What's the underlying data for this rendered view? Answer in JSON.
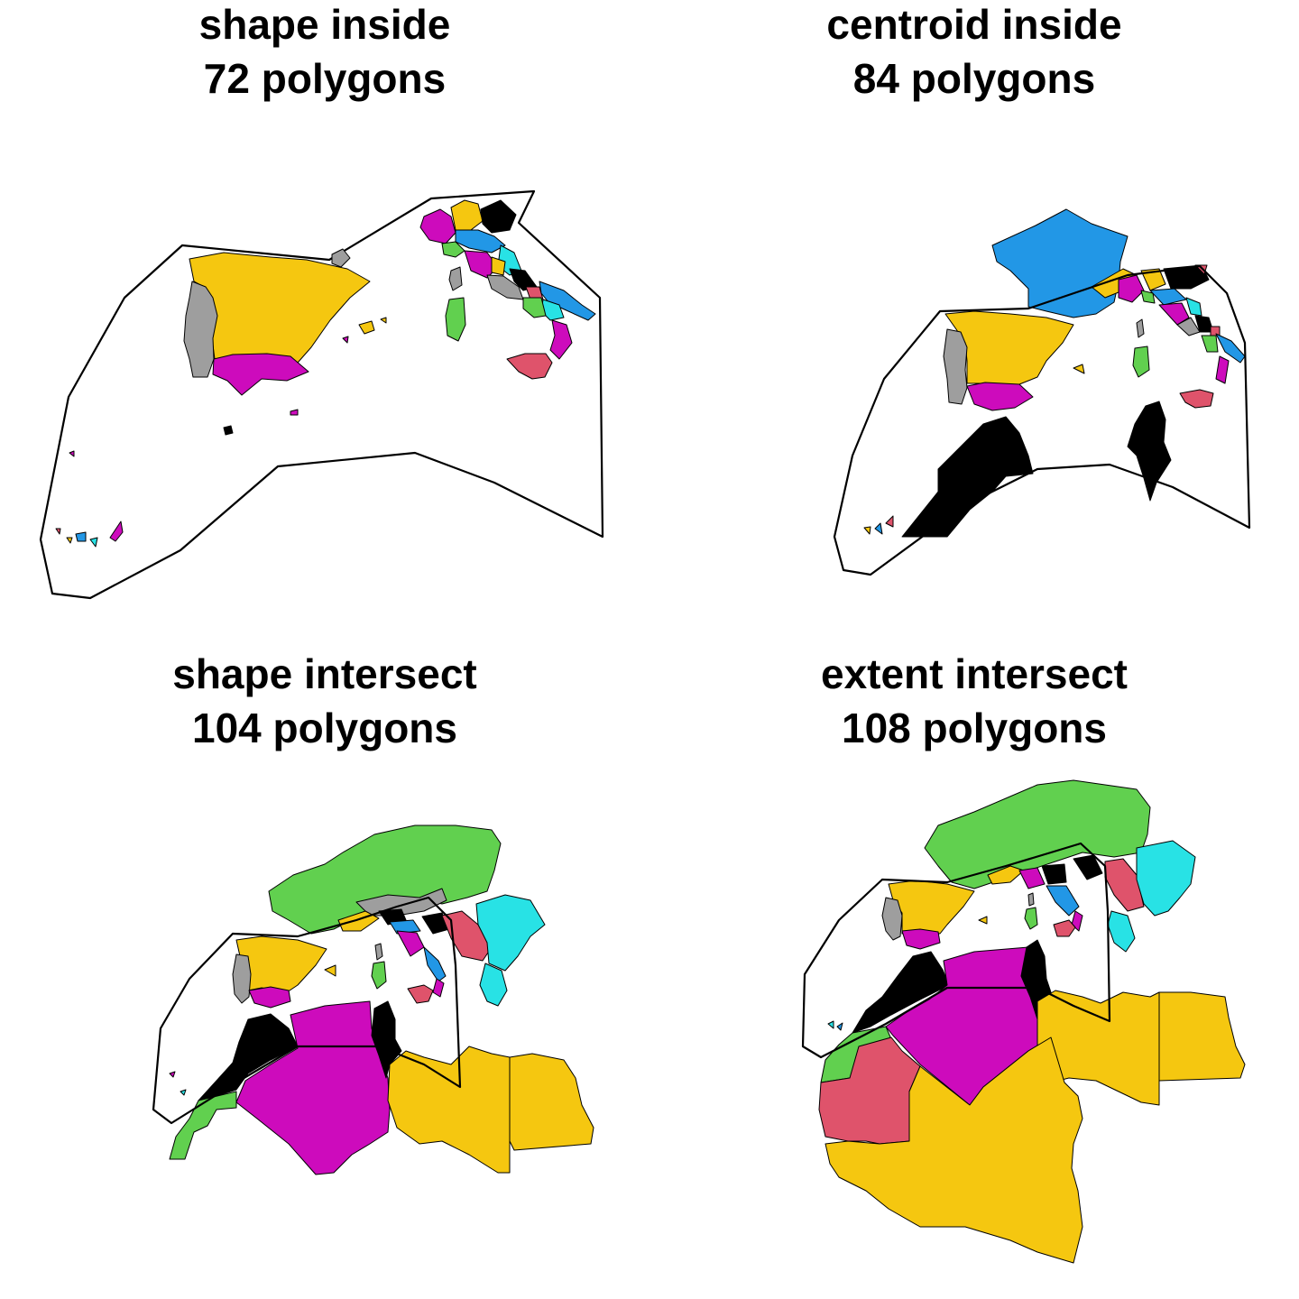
{
  "panels": [
    {
      "title": "shape inside",
      "subtitle": "72 polygons"
    },
    {
      "title": "centroid inside",
      "subtitle": "84 polygons"
    },
    {
      "title": "shape intersect",
      "subtitle": "104 polygons"
    },
    {
      "title": "extent intersect",
      "subtitle": "108 polygons"
    }
  ],
  "colors": {
    "black": "#000000",
    "red": "#DF536B",
    "green": "#61D04F",
    "blue": "#2297E6",
    "cyan": "#28E2E5",
    "magenta": "#CD0BBC",
    "yellow": "#F5C710",
    "gray": "#9E9E9E"
  }
}
